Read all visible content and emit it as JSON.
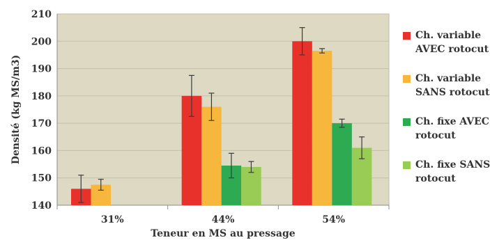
{
  "chart_data": {
    "type": "bar",
    "title": "",
    "xlabel": "Teneur en MS au pressage",
    "ylabel": "Densité (kg MS/m3)",
    "ylim": [
      140,
      210
    ],
    "yticks": [
      140,
      150,
      160,
      170,
      180,
      190,
      200,
      210
    ],
    "categories": [
      "31%",
      "44%",
      "54%"
    ],
    "grid": true,
    "legend_position": "right",
    "background_color": "#ddd9c3",
    "series": [
      {
        "name": "Ch. variable AVEC rotocut",
        "legend_lines": [
          "Ch. variable",
          "AVEC rotocut"
        ],
        "color": "#e8312a",
        "values": [
          146,
          180,
          200
        ],
        "errors": [
          5,
          7.5,
          5
        ]
      },
      {
        "name": "Ch. variable SANS rotocut",
        "legend_lines": [
          "Ch. variable",
          "SANS rotocut"
        ],
        "color": "#f6b73c",
        "values": [
          147.5,
          176,
          196.5
        ],
        "errors": [
          2,
          5,
          0.8
        ]
      },
      {
        "name": "Ch. fixe AVEC rotocut",
        "legend_lines": [
          "Ch. fixe AVEC",
          "rotocut"
        ],
        "color": "#2eaa52",
        "values": [
          null,
          154.5,
          170
        ],
        "errors": [
          null,
          4.5,
          1.5
        ]
      },
      {
        "name": "Ch. fixe SANS rotocut",
        "legend_lines": [
          "Ch. fixe SANS",
          "rotocut"
        ],
        "color": "#99cc55",
        "values": [
          null,
          154,
          161
        ],
        "errors": [
          null,
          2,
          4
        ]
      }
    ]
  }
}
